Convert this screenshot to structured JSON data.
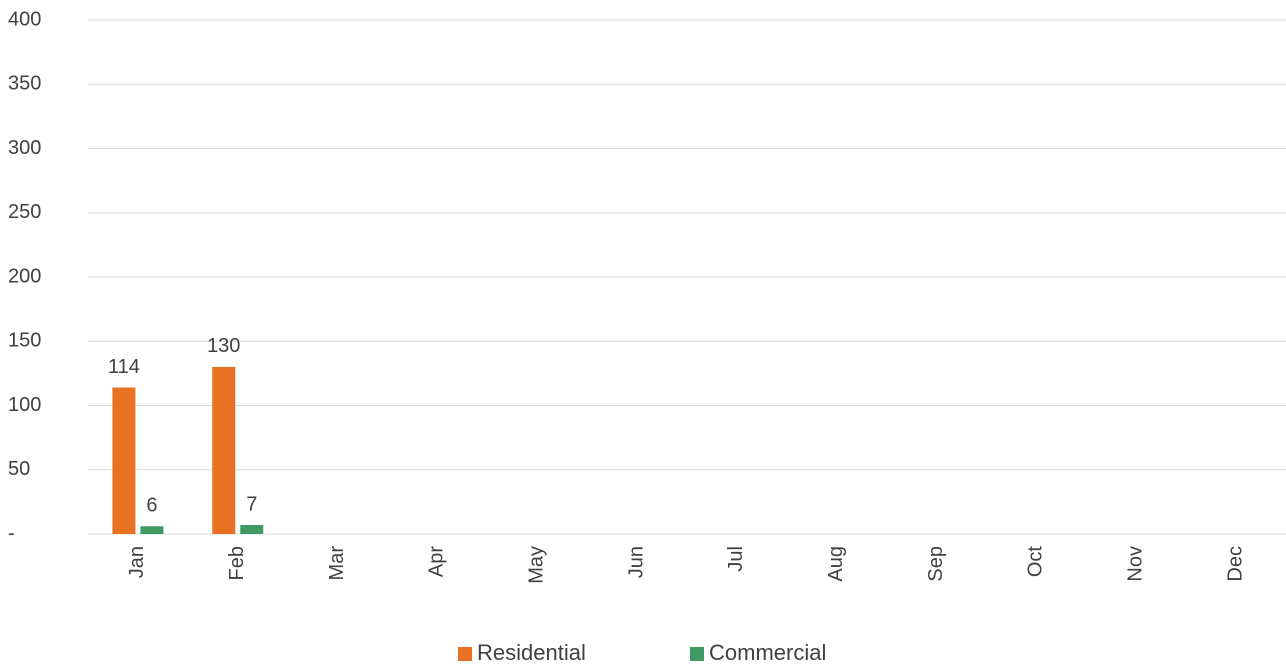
{
  "chart_data": {
    "type": "bar",
    "categories": [
      "Jan",
      "Feb",
      "Mar",
      "Apr",
      "May",
      "Jun",
      "Jul",
      "Aug",
      "Sep",
      "Oct",
      "Nov",
      "Dec"
    ],
    "series": [
      {
        "name": "Residential",
        "color": "#e97124",
        "values": [
          114,
          130,
          null,
          null,
          null,
          null,
          null,
          null,
          null,
          null,
          null,
          null
        ]
      },
      {
        "name": "Commercial",
        "color": "#3f9b63",
        "values": [
          6,
          7,
          null,
          null,
          null,
          null,
          null,
          null,
          null,
          null,
          null,
          null
        ]
      }
    ],
    "ylim": [
      0,
      400
    ],
    "yticks": [
      {
        "value": 0,
        "label": "-"
      },
      50,
      100,
      150,
      200,
      250,
      300,
      350,
      400
    ],
    "grid": true,
    "legend": "bottom"
  }
}
